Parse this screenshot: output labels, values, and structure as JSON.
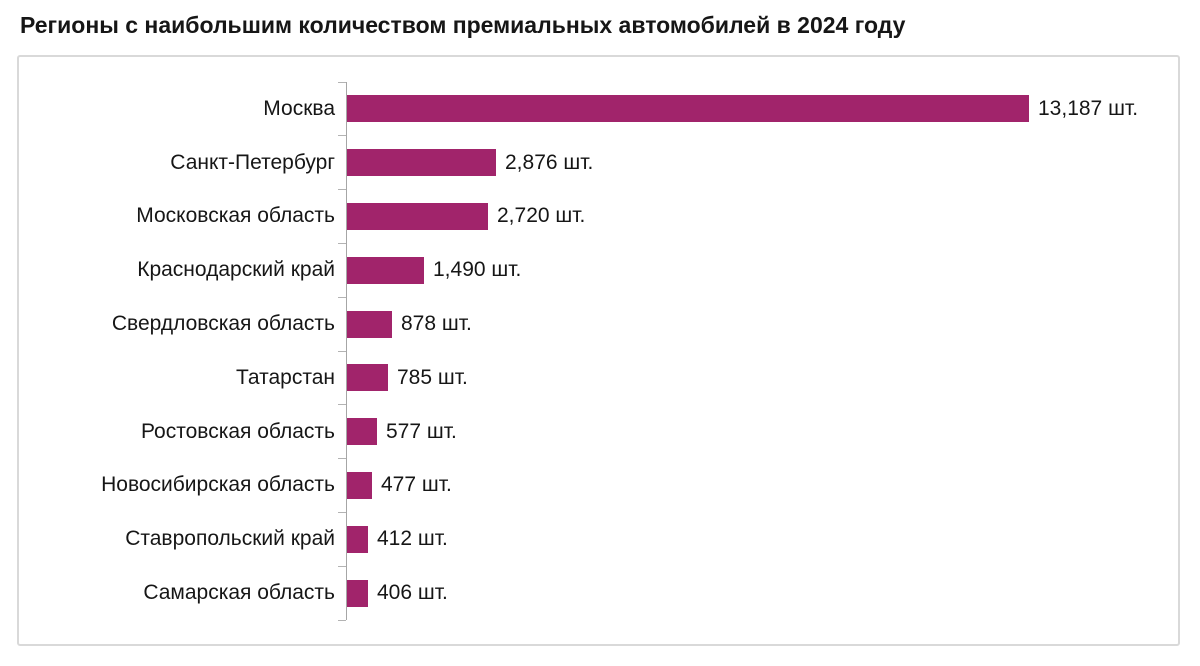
{
  "title": "Регионы с наибольшим количеством премиальных автомобилей в 2024 году",
  "unit_suffix": "шт.",
  "colors": {
    "bar": "#a1246b",
    "axis_line": "#a6a6a6",
    "tick": "#b3b3b3",
    "card_border": "#d9d9d9",
    "text": "#161616",
    "background": "#ffffff"
  },
  "chart_data": {
    "type": "bar",
    "orientation": "horizontal",
    "title": "Регионы с наибольшим количеством премиальных автомобилей в 2024 году",
    "categories": [
      "Москва",
      "Санкт-Петербург",
      "Московская область",
      "Краснодарский край",
      "Свердловская область",
      "Татарстан",
      "Ростовская область",
      "Новосибирская область",
      "Ставропольский край",
      "Самарская область"
    ],
    "values": [
      13187,
      2876,
      2720,
      1490,
      878,
      785,
      577,
      477,
      412,
      406
    ],
    "value_labels": [
      "13,187 шт.",
      "2,876 шт.",
      "2,720 шт.",
      "1,490 шт.",
      "878 шт.",
      "785 шт.",
      "577 шт.",
      "477 шт.",
      "412 шт.",
      "406 шт."
    ],
    "xlabel": "",
    "ylabel": "",
    "xlim": [
      0,
      13187
    ],
    "grid": false,
    "legend": false,
    "value_label_position": "end-of-bar",
    "bar_color": "#a1246b"
  }
}
